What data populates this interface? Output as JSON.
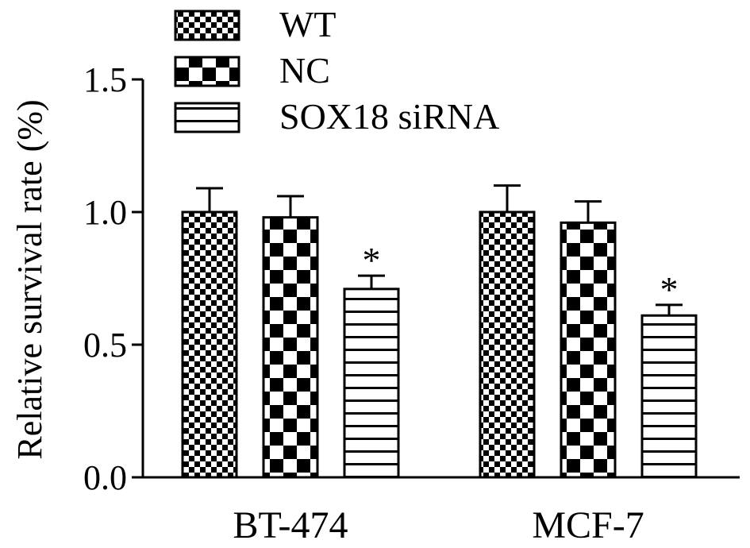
{
  "chart_data": {
    "type": "bar",
    "title": "",
    "xlabel": "",
    "ylabel": "Relative survival rate (%)",
    "ylim": [
      0,
      1.5
    ],
    "yticks": [
      0.0,
      0.5,
      1.0,
      1.5
    ],
    "ytick_labels": [
      "0.0",
      "0.5",
      "1.0",
      "1.5"
    ],
    "categories": [
      "BT-474",
      "MCF-7"
    ],
    "grid": false,
    "legend_position": "top-left",
    "series": [
      {
        "name": "WT",
        "pattern": "fine-checker",
        "values": [
          1.0,
          1.0
        ],
        "errors": [
          0.09,
          0.1
        ],
        "annotations": [
          "",
          ""
        ]
      },
      {
        "name": "NC",
        "pattern": "coarse-checker",
        "values": [
          0.98,
          0.96
        ],
        "errors": [
          0.08,
          0.08
        ],
        "annotations": [
          "",
          ""
        ]
      },
      {
        "name": "SOX18 siRNA",
        "pattern": "horizontal-stripes",
        "values": [
          0.71,
          0.61
        ],
        "errors": [
          0.05,
          0.04
        ],
        "annotations": [
          "*",
          "*"
        ]
      }
    ],
    "colors": {
      "ink": "#000000",
      "fill": "#ffffff"
    }
  }
}
